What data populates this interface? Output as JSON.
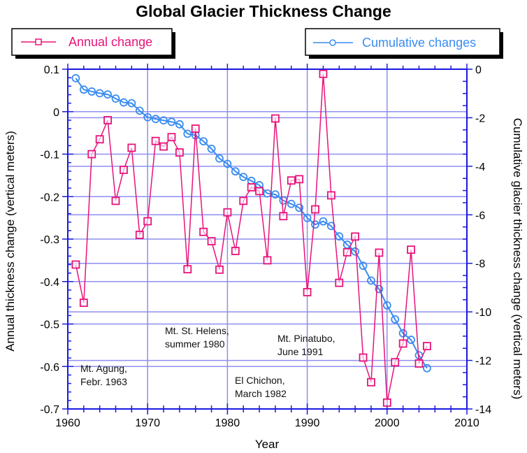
{
  "chart_data": {
    "type": "line",
    "title": "Global Glacier Thickness Change",
    "xlabel": "Year",
    "ylabel": "Annual thickness change (vertical meters)",
    "y2label": "Cumulative glacier thickness change (vertical meters)",
    "xlim": [
      1960,
      2010
    ],
    "ylim": [
      -0.7,
      0.1
    ],
    "y2lim": [
      -14,
      0
    ],
    "grid": true,
    "x_ticks": [
      "1960",
      "1970",
      "1980",
      "1990",
      "2000",
      "2010"
    ],
    "y_ticks": [
      "0.1",
      "0",
      "-0.1",
      "-0.2",
      "-0.3",
      "-0.4",
      "-0.5",
      "-0.6",
      "-0.7"
    ],
    "y2_ticks": [
      "0",
      "-2",
      "-4",
      "-6",
      "-8",
      "-10",
      "-12",
      "-14"
    ],
    "legend": [
      {
        "label": "Annual change",
        "placement": "top-left"
      },
      {
        "label": "Cumulative changes",
        "placement": "top-right"
      }
    ],
    "x": [
      1961,
      1962,
      1963,
      1964,
      1965,
      1966,
      1967,
      1968,
      1969,
      1970,
      1971,
      1972,
      1973,
      1974,
      1975,
      1976,
      1977,
      1978,
      1979,
      1980,
      1981,
      1982,
      1983,
      1984,
      1985,
      1986,
      1987,
      1988,
      1989,
      1990,
      1991,
      1992,
      1993,
      1994,
      1995,
      1996,
      1997,
      1998,
      1999,
      2000,
      2001,
      2002,
      2003,
      2004,
      2005
    ],
    "series": [
      {
        "name": "Annual change",
        "axis": "left",
        "color": "#e8137a",
        "marker": "square",
        "values": [
          -0.36,
          -0.45,
          -0.1,
          -0.065,
          -0.02,
          -0.21,
          -0.137,
          -0.085,
          -0.29,
          -0.258,
          -0.069,
          -0.082,
          -0.06,
          -0.096,
          -0.371,
          -0.04,
          -0.283,
          -0.305,
          -0.372,
          -0.237,
          -0.328,
          -0.21,
          -0.178,
          -0.187,
          -0.35,
          -0.016,
          -0.246,
          -0.162,
          -0.159,
          -0.425,
          -0.23,
          0.089,
          -0.197,
          -0.403,
          -0.331,
          -0.294,
          -0.579,
          -0.637,
          -0.332,
          -0.685,
          -0.59,
          -0.546,
          -0.325,
          -0.593,
          -0.552
        ]
      },
      {
        "name": "Cumulative changes",
        "axis": "right",
        "color": "#3a8cf0",
        "marker": "circle",
        "values": [
          -0.37,
          -0.84,
          -0.92,
          -0.99,
          -1.04,
          -1.21,
          -1.37,
          -1.4,
          -1.71,
          -1.98,
          -2.05,
          -2.11,
          -2.17,
          -2.27,
          -2.66,
          -2.72,
          -2.97,
          -3.28,
          -3.68,
          -3.9,
          -4.21,
          -4.44,
          -4.6,
          -4.78,
          -5.12,
          -5.16,
          -5.41,
          -5.55,
          -5.71,
          -6.13,
          -6.4,
          -6.27,
          -6.46,
          -6.89,
          -7.23,
          -7.51,
          -8.1,
          -8.71,
          -9.06,
          -9.73,
          -10.31,
          -10.88,
          -11.15,
          -11.79,
          -12.32
        ]
      }
    ],
    "annotations": [
      {
        "lines": [
          "Mt. Agung,",
          "Febr. 1963"
        ],
        "year": 1963
      },
      {
        "lines": [
          "Mt. St. Helens,",
          "summer 1980"
        ],
        "year": 1980
      },
      {
        "lines": [
          "El Chichon,",
          "March 1982"
        ],
        "year": 1982
      },
      {
        "lines": [
          "Mt. Pinatubo,",
          "June 1991"
        ],
        "year": 1991
      }
    ]
  },
  "colors": {
    "axis": "#1a1adf",
    "grid": "#8f8ff0",
    "annual": "#e8137a",
    "cumulative": "#3a8cf0"
  }
}
